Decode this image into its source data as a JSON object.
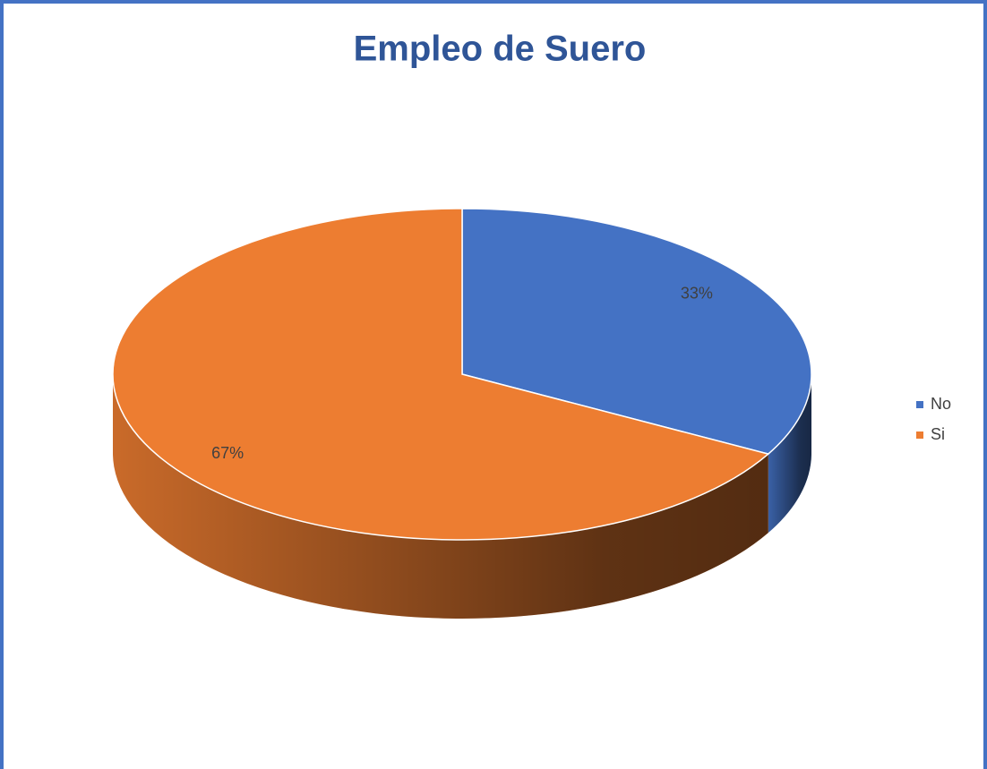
{
  "chart_data": {
    "type": "pie",
    "title": "Empleo de Suero",
    "categories": [
      "No",
      "Si"
    ],
    "values": [
      33,
      67
    ],
    "value_labels": [
      "33%",
      "67%"
    ],
    "colors": [
      "#4472c4",
      "#ed7d31"
    ],
    "legend": "right"
  }
}
